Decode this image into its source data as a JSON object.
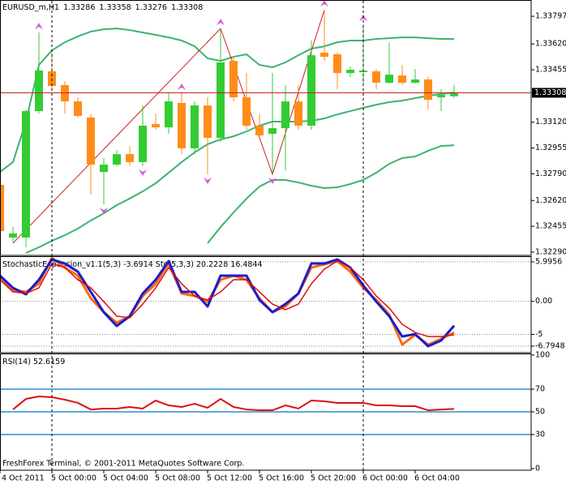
{
  "chart_data": [
    {
      "type": "candlestick",
      "title": "EURUSD_m,H1",
      "categories": [
        "4 Oct 2011",
        null,
        null,
        null,
        "5 Oct 00:00",
        null,
        null,
        null,
        "5 Oct 04:00",
        null,
        null,
        null,
        "5 Oct 08:00",
        null,
        null,
        null,
        "5 Oct 12:00",
        null,
        null,
        null,
        "5 Oct 16:00",
        null,
        null,
        null,
        "5 Oct 20:00",
        null,
        null,
        null,
        "6 Oct 00:00",
        null,
        null,
        null,
        "6 Oct 04:00",
        null,
        null,
        null
      ],
      "open": [
        1.3272,
        1.32383,
        1.32383,
        1.33191,
        1.33445,
        1.33357,
        1.33253,
        1.3315,
        1.32802,
        1.32849,
        1.32916,
        1.32865,
        1.33108,
        1.33087,
        1.33243,
        1.32953,
        1.33227,
        1.3302,
        1.33512,
        1.33279,
        1.33098,
        1.33046,
        1.33082,
        1.33253,
        1.33098,
        1.33564,
        1.33554,
        1.33434,
        1.3344,
        1.33445,
        1.33372,
        1.33419,
        1.33372,
        1.33393,
        1.33279,
        1.33286
      ],
      "high": [
        1.32735,
        1.3245,
        1.33201,
        1.33693,
        1.33564,
        1.33383,
        1.33279,
        1.33175,
        1.32891,
        1.32942,
        1.32968,
        1.33227,
        1.33175,
        1.33305,
        1.33305,
        1.33253,
        1.33279,
        1.33719,
        1.33538,
        1.33434,
        1.33175,
        1.33434,
        1.33357,
        1.33357,
        1.33642,
        1.33838,
        1.33564,
        1.33476,
        1.33745,
        1.3346,
        1.33631,
        1.33486,
        1.3346,
        1.33409,
        1.33331,
        1.33358
      ],
      "low": [
        1.32398,
        1.32347,
        1.32321,
        1.33175,
        1.33331,
        1.33175,
        1.3315,
        1.32657,
        1.32595,
        1.32839,
        1.32839,
        1.32839,
        1.33072,
        1.33046,
        1.32916,
        1.32916,
        1.32787,
        1.32994,
        1.33253,
        1.33072,
        1.3302,
        1.32787,
        1.32813,
        1.33072,
        1.33072,
        1.33512,
        1.33331,
        1.33409,
        1.33357,
        1.33331,
        1.33367,
        1.33357,
        1.33367,
        1.33201,
        1.33191,
        1.33276
      ],
      "close": [
        1.32424,
        1.32409,
        1.33191,
        1.3345,
        1.33352,
        1.33253,
        1.3316,
        1.32849,
        1.32849,
        1.32916,
        1.32865,
        1.33098,
        1.33087,
        1.33253,
        1.32953,
        1.33227,
        1.3302,
        1.33502,
        1.33279,
        1.33098,
        1.33036,
        1.33082,
        1.33253,
        1.33098,
        1.33548,
        1.33538,
        1.33434,
        1.33455,
        1.3345,
        1.33372,
        1.33424,
        1.33372,
        1.33393,
        1.33263,
        1.33295,
        1.33308
      ],
      "up_color": "#33cc33",
      "down_color": "#ff8c1a",
      "bands": {
        "color": "#3cb371",
        "upper": [
          1.32802,
          1.32865,
          1.33124,
          1.33486,
          1.33579,
          1.33631,
          1.33668,
          1.33699,
          1.33714,
          1.33719,
          1.33709,
          1.33693,
          1.33678,
          1.33662,
          1.33642,
          1.33605,
          1.33528,
          1.33512,
          1.33538,
          1.33554,
          1.33486,
          1.33471,
          1.33502,
          1.33548,
          1.3359,
          1.33605,
          1.33631,
          1.33642,
          1.33642,
          1.33652,
          1.33657,
          1.33662,
          1.33662,
          1.33657,
          1.33652,
          1.33652
        ],
        "middle": [
          null,
          null,
          1.32284,
          1.32321,
          1.32362,
          1.32398,
          1.3244,
          1.32492,
          1.32538,
          1.3259,
          1.32632,
          1.32678,
          1.3273,
          1.32797,
          1.32865,
          1.32927,
          1.32979,
          1.3301,
          1.3303,
          1.33061,
          1.33098,
          1.33124,
          1.33124,
          1.33124,
          1.33129,
          1.33144,
          1.3317,
          1.33191,
          1.33212,
          1.33232,
          1.33248,
          1.33258,
          1.33274,
          1.33289,
          1.333,
          1.3331
        ],
        "lower": [
          null,
          null,
          null,
          null,
          null,
          null,
          null,
          null,
          null,
          null,
          null,
          null,
          null,
          null,
          null,
          null,
          1.32347,
          1.3245,
          1.32543,
          1.32632,
          1.32709,
          1.32751,
          1.32751,
          1.32735,
          1.32714,
          1.32699,
          1.32704,
          1.32725,
          1.32751,
          1.32797,
          1.32854,
          1.32891,
          1.32901,
          1.32937,
          1.32968,
          1.32973
        ]
      },
      "zigzag_x": [
        1,
        17,
        21,
        25
      ],
      "zigzag": [
        1.32347,
        1.33719,
        1.32787,
        1.33838
      ],
      "zigzag_color": "#cc2020",
      "fractals_up": [
        3,
        14,
        17,
        25,
        28
      ],
      "fractals_down": [
        8,
        11,
        16,
        21
      ],
      "fractal_color": "#d35fd3",
      "price_line_color": "#cc2020",
      "ylim": [
        1.32269,
        1.33901
      ],
      "yticks": [
        1.33797,
        {
          "value": 1.3362,
          "label": "1.33620"
        },
        1.33455,
        {
          "value": 1.3312,
          "label": "1.33120"
        },
        1.32955,
        {
          "value": 1.3279,
          "label": "1.32790"
        },
        {
          "value": 1.3262,
          "label": "1.32620"
        },
        1.32455,
        {
          "value": 1.3229,
          "label": "1.32290"
        }
      ]
    },
    {
      "type": "line",
      "title": "StochasticExpansion_v1.1(5,3) -3.6914  Sto(5,3,3) 20.2228 16.4844",
      "series": [
        {
          "color": "#ff6a10",
          "values": [
            3.65,
            1.69,
            1.44,
            2.67,
            6.59,
            5.13,
            3.9,
            0.46,
            -1.64,
            -3.23,
            -2.25,
            0.82,
            2.67,
            5.74,
            1.19,
            0.82,
            -0.04,
            3.28,
            3.9,
            3.28,
            0.46,
            -1.64,
            -0.77,
            1.19,
            5.13,
            5.62,
            6.11,
            4.51,
            2.05,
            0.21,
            -2.0,
            -6.56,
            -5.08,
            -6.56,
            -5.69,
            -4.71
          ]
        },
        {
          "color": "#1c1ccc",
          "values": [
            3.9,
            2.05,
            1.07,
            3.28,
            6.36,
            5.74,
            4.51,
            1.44,
            -1.64,
            -3.73,
            -2.25,
            1.19,
            3.28,
            6.11,
            1.44,
            1.44,
            -0.77,
            3.9,
            3.9,
            3.9,
            0.21,
            -1.64,
            -0.41,
            1.19,
            5.74,
            5.74,
            6.36,
            5.13,
            2.42,
            -0.04,
            -2.25,
            -5.33,
            -4.96,
            -6.8,
            -5.94,
            -3.69
          ]
        },
        {
          "color": "#dd1010",
          "values": [
            3.28,
            1.44,
            1.19,
            2.05,
            5.74,
            5.13,
            3.28,
            2.05,
            -0.04,
            -2.25,
            -2.5,
            -0.41,
            2.05,
            5.13,
            2.67,
            0.82,
            0.21,
            1.44,
            3.28,
            3.28,
            1.44,
            -0.41,
            -1.27,
            -0.41,
            2.67,
            4.88,
            6.11,
            5.13,
            3.28,
            0.82,
            -1.02,
            -3.48,
            -4.71,
            -5.33,
            -5.33,
            -5.08
          ]
        }
      ],
      "ylim": [
        -7.78,
        6.73
      ],
      "yticks": [
        5.9956,
        {
          "value": 0,
          "label": "0.00"
        },
        -5,
        -6.7948
      ],
      "grid": true
    },
    {
      "type": "line",
      "title": "RSI(14) 52.6159",
      "series": [
        {
          "color": "#dd1010",
          "values": [
            null,
            52.1,
            61.4,
            63.6,
            62.9,
            60.7,
            57.9,
            52.1,
            52.9,
            52.9,
            54.3,
            52.9,
            60.0,
            55.7,
            54.3,
            57.1,
            53.6,
            61.4,
            54.3,
            52.1,
            51.4,
            51.4,
            55.7,
            52.9,
            60.0,
            59.3,
            57.9,
            57.9,
            57.9,
            55.7,
            55.7,
            55.0,
            55.0,
            51.4,
            52.1,
            52.6159
          ]
        }
      ],
      "levels": [
        70,
        50,
        30
      ],
      "level_color": "#2a8fd0",
      "ylim": [
        -1.4,
        100.7
      ],
      "yticks": [
        100,
        70,
        50,
        30,
        0
      ]
    }
  ],
  "footer": "FreshForex Terminal, © 2001-2011 MetaQuotes Software Corp."
}
